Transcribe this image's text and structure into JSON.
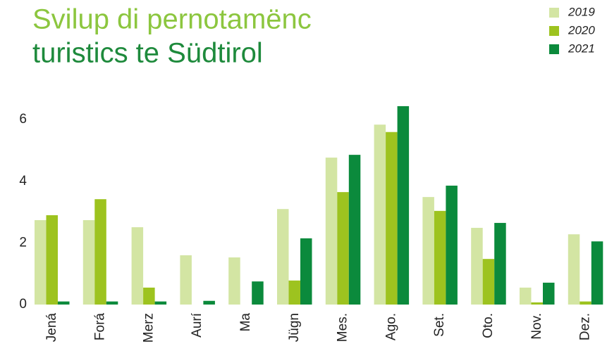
{
  "chart_data": {
    "type": "bar",
    "title": [
      "Svilup di pernotamënc",
      "turistics te Südtirol"
    ],
    "categories": [
      "Jená",
      "Forá",
      "Merz",
      "Aurí",
      "Ma",
      "Jügn",
      "Mes.",
      "Ago.",
      "Set.",
      "Oto.",
      "Nov.",
      "Dez."
    ],
    "series": [
      {
        "name": "2019",
        "color": "#d3e5a3",
        "values": [
          2.74,
          2.74,
          2.51,
          1.6,
          1.53,
          3.1,
          4.77,
          5.84,
          3.49,
          2.49,
          0.55,
          2.28
        ]
      },
      {
        "name": "2020",
        "color": "#9dc31f",
        "values": [
          2.9,
          3.42,
          0.55,
          0,
          0,
          0.78,
          3.65,
          5.6,
          3.04,
          1.48,
          0.07,
          0.1
        ]
      },
      {
        "name": "2021",
        "color": "#0b8a3c",
        "values": [
          0.1,
          0.1,
          0.1,
          0.12,
          0.75,
          2.15,
          4.86,
          6.44,
          3.86,
          2.65,
          0.71,
          2.05
        ]
      }
    ],
    "ylim": [
      0,
      7
    ],
    "yticks": [
      0,
      2,
      4,
      6
    ],
    "grid": false,
    "legend": "top-right"
  }
}
